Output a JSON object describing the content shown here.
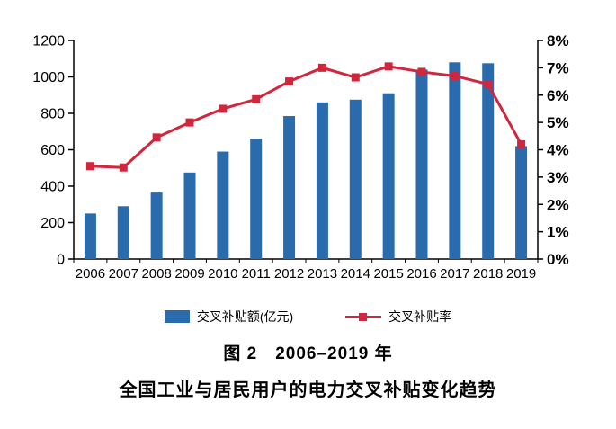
{
  "caption": {
    "line1": "图 2　2006–2019 年",
    "line2": "全国工业与居民用户的电力交叉补贴变化趋势"
  },
  "chart_data": {
    "type": "bar",
    "subtype": "bar-line-combo",
    "title": "图 2 2006–2019 年 全国工业与居民用户的电力交叉补贴变化趋势",
    "categories": [
      "2006",
      "2007",
      "2008",
      "2009",
      "2010",
      "2011",
      "2012",
      "2013",
      "2014",
      "2015",
      "2016",
      "2017",
      "2018",
      "2019"
    ],
    "series": [
      {
        "name": "交叉补贴额(亿元)",
        "type": "bar",
        "axis": "left",
        "color": "#2A6BAD",
        "values": [
          250,
          290,
          365,
          475,
          590,
          660,
          785,
          860,
          875,
          910,
          1040,
          1080,
          1075,
          620
        ]
      },
      {
        "name": "交叉补贴率",
        "type": "line",
        "axis": "right",
        "color": "#D1273E",
        "marker": "square",
        "values": [
          3.4,
          3.35,
          4.45,
          5.0,
          5.5,
          5.85,
          6.5,
          7.0,
          6.65,
          7.05,
          6.85,
          6.7,
          6.4,
          4.2
        ]
      }
    ],
    "left_axis": {
      "min": 0,
      "max": 1200,
      "step": 200
    },
    "right_axis": {
      "min": 0,
      "max": 8,
      "step": 1,
      "suffix": "%"
    },
    "grid": false,
    "legend_position": "bottom"
  }
}
